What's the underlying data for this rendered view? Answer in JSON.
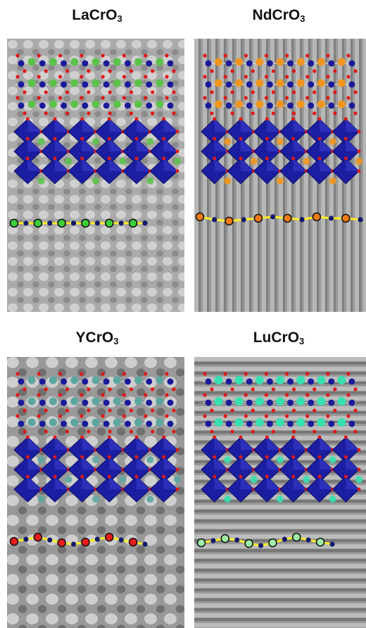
{
  "figure": {
    "panels": [
      {
        "id": "lacro3",
        "formula_main": "LaCrO",
        "formula_sub": "3",
        "a_site_color": "#5cc24a",
        "chain_a_color": "#3ccf3c"
      },
      {
        "id": "ndcro3",
        "formula_main": "NdCrO",
        "formula_sub": "3",
        "a_site_color": "#f0961e",
        "chain_a_color": "#f07a12"
      },
      {
        "id": "ycro3",
        "formula_main": "YCrO",
        "formula_sub": "3",
        "a_site_color": "#5ca6a0",
        "chain_a_color": "#e81c1c"
      },
      {
        "id": "lucro3",
        "formula_main": "LuCrO",
        "formula_sub": "3",
        "a_site_color": "#36e0b0",
        "chain_a_color": "#9ef0a8"
      }
    ],
    "colors": {
      "octahedra": "#1b1ea0",
      "cr_atom": "#1a1a9a",
      "o_atom": "#e01818",
      "bond_line": "#ffee22",
      "chain_b_atom": "#121a6e"
    }
  }
}
